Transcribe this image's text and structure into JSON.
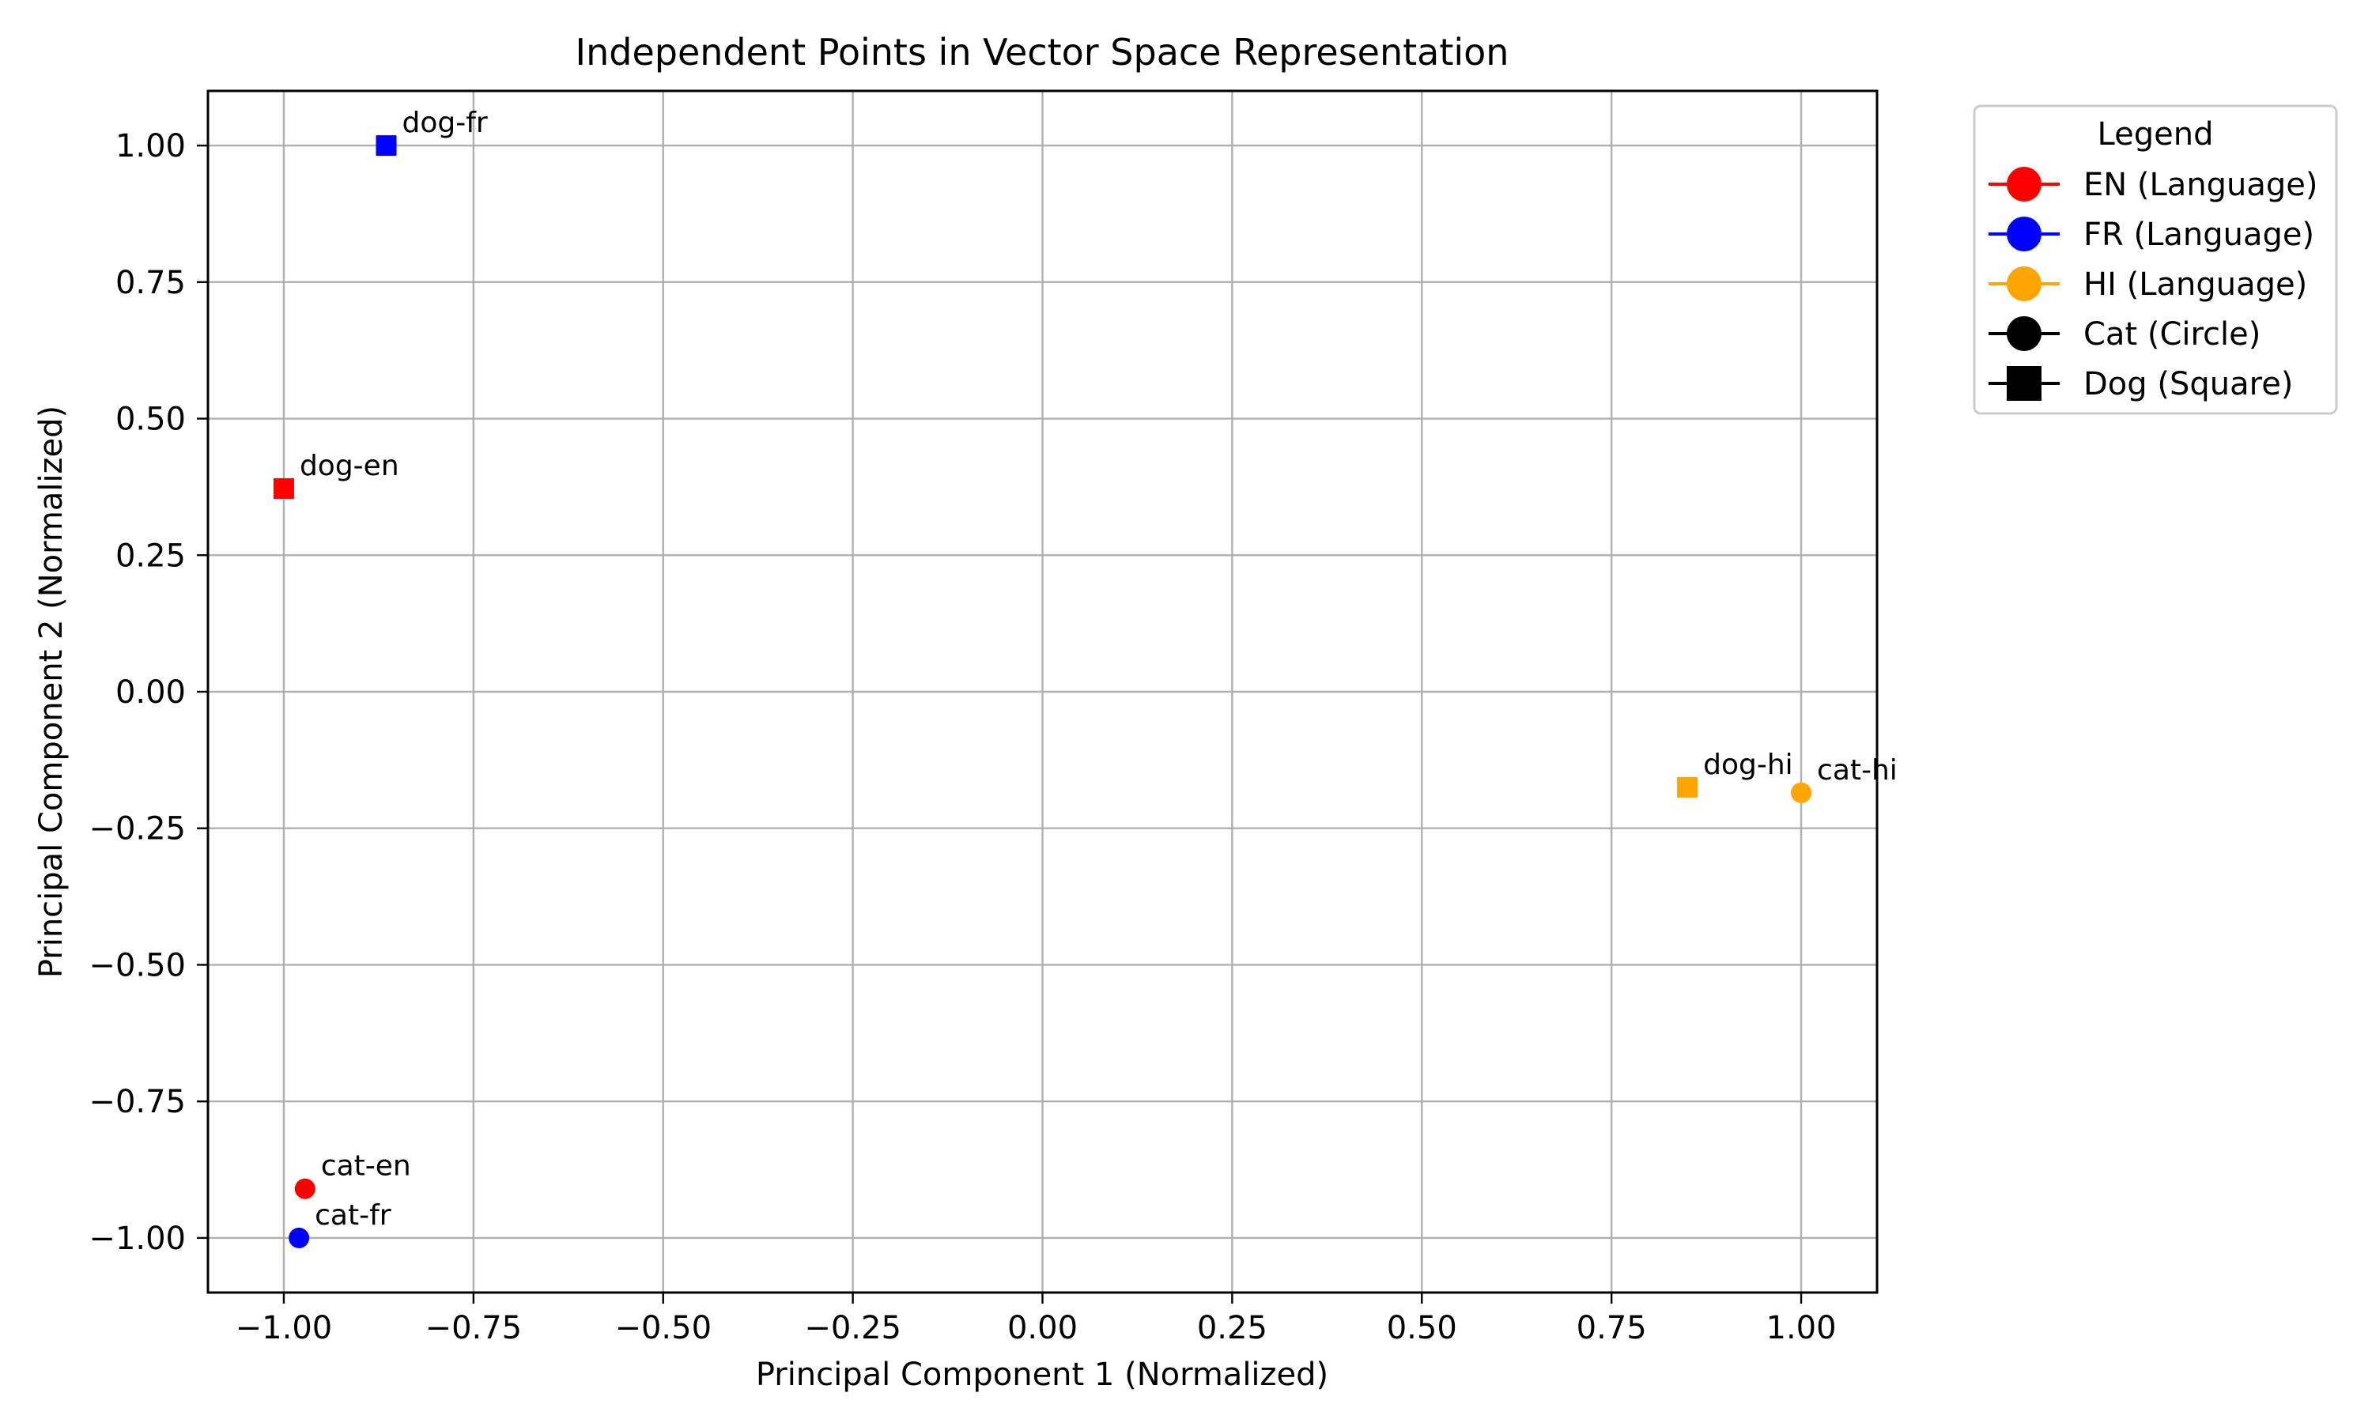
{
  "chart_data": {
    "type": "scatter",
    "title": "Independent Points in Vector Space Representation",
    "xlabel": "Principal Component 1 (Normalized)",
    "ylabel": "Principal Component 2 (Normalized)",
    "xlim": [
      -1.1,
      1.1
    ],
    "ylim": [
      -1.1,
      1.1
    ],
    "xticks": [
      -1.0,
      -0.75,
      -0.5,
      -0.25,
      0.0,
      0.25,
      0.5,
      0.75,
      1.0
    ],
    "yticks": [
      -1.0,
      -0.75,
      -0.5,
      -0.25,
      0.0,
      0.25,
      0.5,
      0.75,
      1.0
    ],
    "xtick_labels": [
      "−1.00",
      "−0.75",
      "−0.50",
      "−0.25",
      "0.00",
      "0.25",
      "0.50",
      "0.75",
      "1.00"
    ],
    "ytick_labels": [
      "−1.00",
      "−0.75",
      "−0.50",
      "−0.25",
      "0.00",
      "0.25",
      "0.50",
      "0.75",
      "1.00"
    ],
    "grid": true,
    "points": [
      {
        "label": "dog-fr",
        "x": -0.865,
        "y": 1.0,
        "marker": "square",
        "color": "#0000ff"
      },
      {
        "label": "dog-en",
        "x": -1.0,
        "y": 0.372,
        "marker": "square",
        "color": "#ff0000"
      },
      {
        "label": "dog-hi",
        "x": 0.85,
        "y": -0.175,
        "marker": "square",
        "color": "#ffa500"
      },
      {
        "label": "cat-hi",
        "x": 1.0,
        "y": -0.185,
        "marker": "circle",
        "color": "#ffa500"
      },
      {
        "label": "cat-en",
        "x": -0.972,
        "y": -0.91,
        "marker": "circle",
        "color": "#ff0000"
      },
      {
        "label": "cat-fr",
        "x": -0.98,
        "y": -1.0,
        "marker": "circle",
        "color": "#0000ff"
      }
    ],
    "legend": {
      "title": "Legend",
      "placement": "outside-upper-right",
      "entries": [
        {
          "label": "EN (Language)",
          "color": "#ff0000",
          "marker": "circle"
        },
        {
          "label": "FR (Language)",
          "color": "#0000ff",
          "marker": "circle"
        },
        {
          "label": "HI (Language)",
          "color": "#ffa500",
          "marker": "circle"
        },
        {
          "label": "Cat (Circle)",
          "color": "#000000",
          "marker": "circle"
        },
        {
          "label": "Dog (Square)",
          "color": "#000000",
          "marker": "square"
        }
      ]
    }
  }
}
